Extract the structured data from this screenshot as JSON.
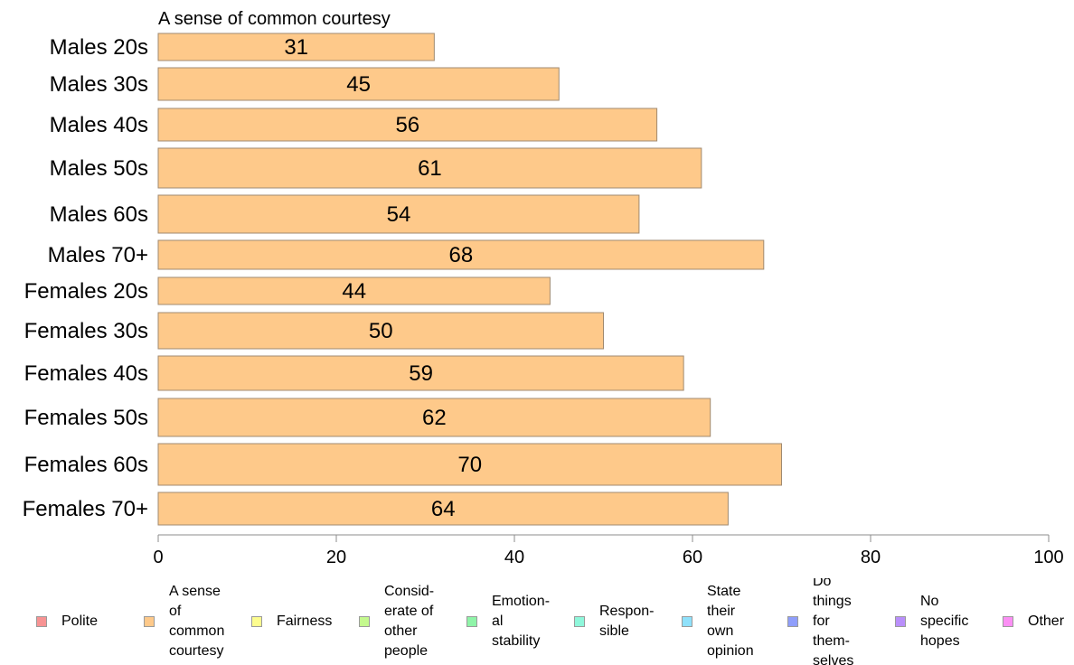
{
  "chart_data": {
    "type": "bar",
    "orientation": "horizontal",
    "title": "A sense of common courtesy",
    "categories": [
      "Males 20s",
      "Males 30s",
      "Males 40s",
      "Males 50s",
      "Males 60s",
      "Males 70+",
      "Females 20s",
      "Females 30s",
      "Females 40s",
      "Females 50s",
      "Females 60s",
      "Females 70+"
    ],
    "values": [
      31,
      45,
      56,
      61,
      54,
      68,
      44,
      50,
      59,
      62,
      70,
      64
    ],
    "data_labels": [
      "31",
      "45",
      "56",
      "61",
      "54",
      "68",
      "44",
      "50",
      "59",
      "62",
      "70",
      "64"
    ],
    "xlim": [
      0,
      100
    ],
    "xticks": [
      "0",
      "20",
      "40",
      "60",
      "80",
      "100"
    ],
    "bar_color": "#fec98a",
    "bar_edge": "#a08a70",
    "grid": false,
    "legend_position": "bottom"
  },
  "legend": [
    {
      "label": "Polite",
      "color": "#f79393"
    },
    {
      "label": "A sense\nof\ncommon\ncourtesy",
      "color": "#fec98a"
    },
    {
      "label": "Fairness",
      "color": "#fdfd8f"
    },
    {
      "label": "Consid-\nerate of\nother\npeople",
      "color": "#c4f98e"
    },
    {
      "label": "Emotion-\nal\nstability",
      "color": "#8ff4a8"
    },
    {
      "label": "Respon-\nsible",
      "color": "#8ff7db"
    },
    {
      "label": "State\ntheir\nown\nopinion",
      "color": "#8fe1fb"
    },
    {
      "label": "Do\nthings\nfor\nthem-\nselves",
      "color": "#8f9efb"
    },
    {
      "label": "No\nspecific\nhopes",
      "color": "#b98ffb"
    },
    {
      "label": "Other",
      "color": "#fb8ff4"
    }
  ]
}
